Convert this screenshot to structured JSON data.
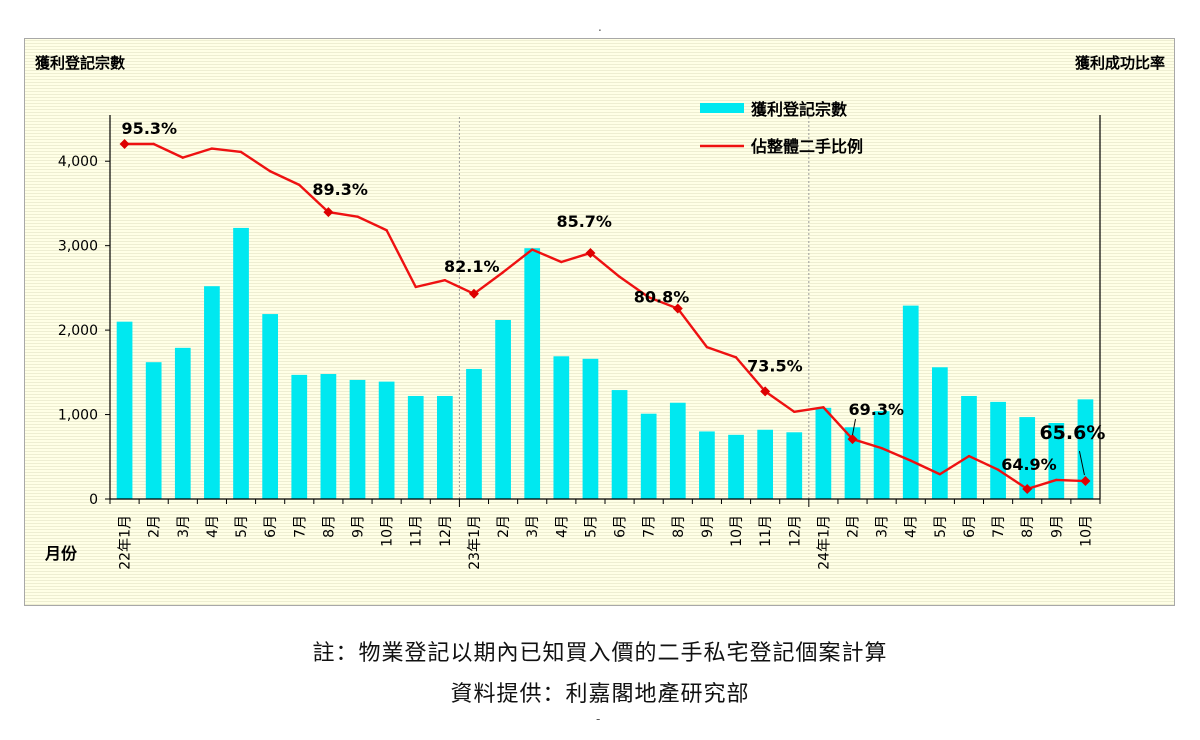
{
  "chart_data": {
    "type": "bar+line",
    "left_axis_title": "獲利登記宗數",
    "right_axis_title": "獲利成功比率",
    "x_axis_title": "月份",
    "ylim": [
      0,
      4500
    ],
    "yticks": [
      0,
      1000,
      2000,
      3000,
      4000
    ],
    "ytick_labels": [
      "0",
      "1,000",
      "2,000",
      "3,000",
      "4,000"
    ],
    "grid": false,
    "legend_position": "top-center",
    "categories": [
      "22年1月",
      "2月",
      "3月",
      "4月",
      "5月",
      "6月",
      "7月",
      "8月",
      "9月",
      "10月",
      "11月",
      "12月",
      "23年1月",
      "2月",
      "3月",
      "4月",
      "5月",
      "6月",
      "7月",
      "8月",
      "9月",
      "10月",
      "11月",
      "12月",
      "24年1月",
      "2月",
      "3月",
      "4月",
      "5月",
      "6月",
      "7月",
      "8月",
      "9月",
      "10月"
    ],
    "series": [
      {
        "name": "獲利登記宗數",
        "type": "bar",
        "axis": "left",
        "color": "#00e8f0",
        "values": [
          2100,
          1620,
          1790,
          2520,
          3210,
          2190,
          1470,
          1480,
          1410,
          1390,
          1220,
          1220,
          1540,
          2120,
          2970,
          1690,
          1660,
          1290,
          1010,
          1140,
          800,
          760,
          820,
          790,
          1080,
          850,
          1040,
          2290,
          1560,
          1220,
          1150,
          970,
          900,
          1180
        ]
      },
      {
        "name": "佔整體二手比例",
        "type": "line",
        "axis": "right",
        "unit": "%",
        "color": "#ee1111",
        "values": [
          95.3,
          95.3,
          94.1,
          94.9,
          94.6,
          92.9,
          91.7,
          89.3,
          88.9,
          87.7,
          82.7,
          83.3,
          82.1,
          84.0,
          86.0,
          84.9,
          85.7,
          83.6,
          81.8,
          80.8,
          77.4,
          76.5,
          73.5,
          71.7,
          72.1,
          69.3,
          68.5,
          67.4,
          66.2,
          67.8,
          66.6,
          64.9,
          65.7,
          65.6
        ]
      }
    ],
    "annotations": [
      {
        "index": 0,
        "text": "95.3%"
      },
      {
        "index": 7,
        "text": "89.3%"
      },
      {
        "index": 12,
        "text": "82.1%"
      },
      {
        "index": 16,
        "text": "85.7%"
      },
      {
        "index": 19,
        "text": "80.8%"
      },
      {
        "index": 22,
        "text": "73.5%"
      },
      {
        "index": 25,
        "text": "69.3%"
      },
      {
        "index": 31,
        "text": "64.9%"
      },
      {
        "index": 33,
        "text": "65.6%"
      }
    ]
  },
  "notes": {
    "line1": "註：物業登記以期內已知買入價的二手私宅登記個案計算",
    "line2": "資料提供：利嘉閣地產研究部"
  },
  "page_marks": {
    "top": ".",
    "bottom": "-"
  }
}
